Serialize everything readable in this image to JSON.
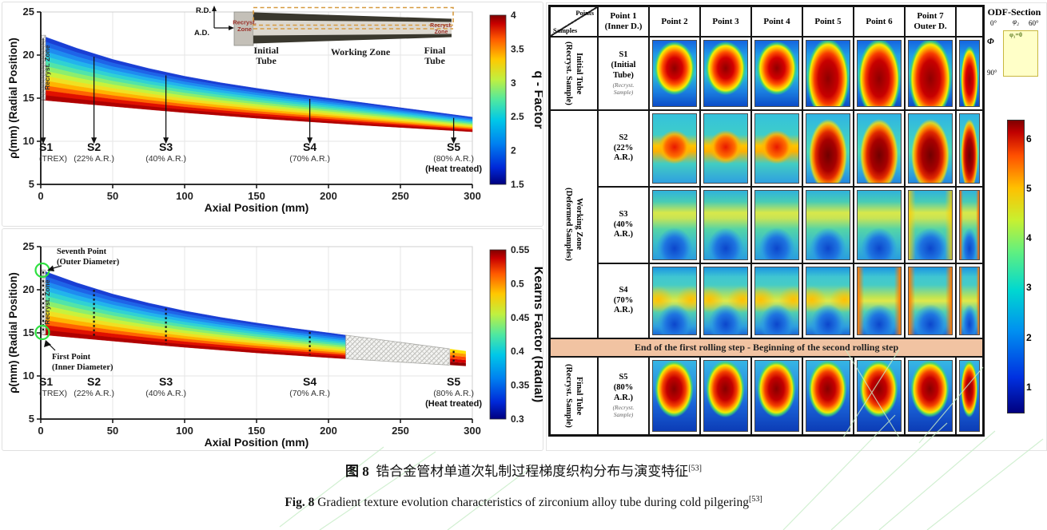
{
  "figure_captions": {
    "zh_prefix": "图 8",
    "zh_text": "锆合金管材单道次轧制过程梯度织构分布与演变特征",
    "en_prefix": "Fig. 8",
    "en_text": "Gradient texture evolution characteristics of zirconium alloy tube during cold pilgering",
    "ref": "[53]"
  },
  "chart_data": [
    {
      "type": "area",
      "name": "q-factor-distribution",
      "xlabel": "Axial Position (mm)",
      "ylabel": "ρ(mm) (Radial Position)",
      "xlim": [
        0,
        300
      ],
      "ylim": [
        5,
        25
      ],
      "x_ticks": [
        0,
        50,
        100,
        150,
        200,
        250,
        300
      ],
      "y_ticks": [
        5,
        10,
        15,
        20,
        25
      ],
      "grid": true,
      "band": {
        "x": [
          0,
          25,
          50,
          75,
          100,
          125,
          150,
          175,
          200,
          225,
          250,
          275,
          300
        ],
        "outer": [
          22.3,
          20.8,
          19.5,
          18.45,
          17.55,
          16.8,
          16.15,
          15.55,
          15.0,
          14.45,
          13.9,
          13.35,
          12.8
        ],
        "inner": [
          14.8,
          14.42,
          14.05,
          13.68,
          13.32,
          13.0,
          12.68,
          12.4,
          12.12,
          11.85,
          11.6,
          11.35,
          11.1
        ]
      },
      "recryst_zone_label": "Recryst. Zone",
      "marker_style": "arrow",
      "markers": [
        {
          "label": "S1",
          "sub": "(TREX)",
          "x": 0
        },
        {
          "label": "S2",
          "sub": "(22% A.R.)",
          "x": 37
        },
        {
          "label": "S3",
          "sub": "(40% A.R.)",
          "x": 87
        },
        {
          "label": "S4",
          "sub": "(70% A.R.)",
          "x": 187
        },
        {
          "label": "S5",
          "sub": "(80% A.R.)",
          "sub2": "(Heat treated)",
          "x": 287
        }
      ],
      "colorbar": {
        "label": "q - Factor",
        "ticks": [
          "1.5",
          "2",
          "2.5",
          "3",
          "3.5",
          "4"
        ]
      }
    },
    {
      "type": "area",
      "name": "kearns-factor-distribution",
      "xlabel": "Axial Position (mm)",
      "ylabel": "ρ(mm) (Radial Position)",
      "xlim": [
        0,
        300
      ],
      "ylim": [
        5,
        25
      ],
      "x_ticks": [
        0,
        50,
        100,
        150,
        200,
        250,
        300
      ],
      "y_ticks": [
        5,
        10,
        15,
        20,
        25
      ],
      "grid": true,
      "band": {
        "x": [
          0,
          25,
          50,
          75,
          100,
          125,
          150,
          175,
          200,
          225,
          250,
          275,
          300
        ],
        "outer": [
          22.3,
          20.8,
          19.5,
          18.45,
          17.55,
          16.8,
          16.15,
          15.55,
          15.0,
          14.45,
          13.9,
          13.35,
          12.8
        ],
        "inner": [
          14.8,
          14.42,
          14.05,
          13.68,
          13.32,
          13.0,
          12.68,
          12.4,
          12.12,
          11.85,
          11.6,
          11.35,
          11.1
        ]
      },
      "band_end": 212,
      "hatch_region": [
        212,
        284
      ],
      "s5_band": [
        284.5,
        295.5
      ],
      "recryst_zone_label": "Recryst. Zone",
      "marker_style": "dotted",
      "markers": [
        {
          "label": "S1",
          "sub": "(TREX)",
          "x": 0
        },
        {
          "label": "S2",
          "sub": "(22% A.R.)",
          "x": 37
        },
        {
          "label": "S3",
          "sub": "(40% A.R.)",
          "x": 87
        },
        {
          "label": "S4",
          "sub": "(70% A.R.)",
          "x": 187
        },
        {
          "label": "S5",
          "sub": "(80% A.R.)",
          "sub2": "(Heat treated)",
          "x": 287
        }
      ],
      "annotations": [
        {
          "line1": "Seventh Point",
          "line2": "(Outer Diameter)"
        },
        {
          "line1": "First Point",
          "line2": "(Inner Diameter)"
        }
      ],
      "colorbar": {
        "label": "Kearns Factor (Radial)",
        "ticks": [
          "0.3",
          "0.35",
          "0.4",
          "0.45",
          "0.5",
          "0.55"
        ]
      }
    }
  ],
  "inset": {
    "rd": "R.D.",
    "ad": "A.D.",
    "recryst": "Recryst.",
    "zone": "Zone",
    "initial_1": "Initial",
    "initial_2": "Tube",
    "working": "Working Zone",
    "final_1": "Final",
    "final_2": "Tube"
  },
  "right_panel": {
    "table": {
      "corner": {
        "top": "Points",
        "bottom": "Samples"
      },
      "columns": [
        "Point 1\n(Inner D.)",
        "Point 2",
        "Point 3",
        "Point 4",
        "Point 5",
        "Point 6",
        "Point 7\nOuter D."
      ],
      "rows": [
        {
          "label": "S1\n(Initial\nTube)",
          "note": "(Recryst.\nSample)"
        },
        {
          "label": "S2\n(22%\nA.R.)",
          "note": ""
        },
        {
          "label": "S3\n(40%\nA.R.)",
          "note": ""
        },
        {
          "label": "S4\n(70%\nA.R.)",
          "note": ""
        },
        {
          "label": "S5\n(80%\nA.R.)",
          "note": "(Recryst.\nSample)"
        }
      ],
      "divider": "End of the first rolling step - Beginning of the second rolling step",
      "zone_labels": [
        "Initial Tube\n(Recryst. Sample)",
        "Working Zone\n(Deformed Samples)",
        "Final Tube\n(Recryst. Sample)"
      ]
    },
    "odf_legend": {
      "title": "ODF-Section",
      "deg0": "0°",
      "phi2": "φ₂",
      "deg60": "60°",
      "phi": "Φ",
      "phi1_eq": "φ₁=0",
      "deg90": "90°"
    },
    "colorbar": {
      "ticks": [
        "6",
        "5",
        "4",
        "3",
        "2",
        "1"
      ]
    }
  },
  "colors": {
    "divider_bg": "#f1c3a2",
    "highlight_green": "#2ee040",
    "odf_box": "#ffffc8",
    "jet_low": "#00007f",
    "jet_high": "#7f0000"
  }
}
